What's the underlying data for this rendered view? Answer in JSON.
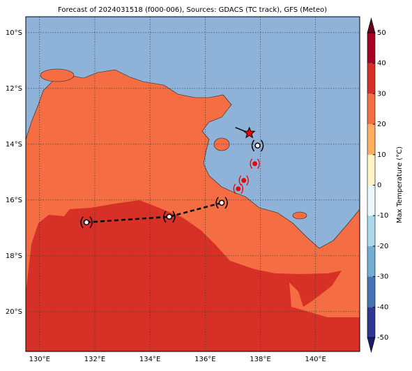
{
  "title": "Forecast of 2024031518 (f000-006), Sources: GDACS (TC track), GFS (Meteo)",
  "map": {
    "lonlim": [
      129.5,
      141.6
    ],
    "latlim": [
      -21.43,
      -9.43
    ],
    "lon_ticks": [
      {
        "value": 130,
        "label": "130°E"
      },
      {
        "value": 132,
        "label": "132°E"
      },
      {
        "value": 134,
        "label": "134°E"
      },
      {
        "value": 136,
        "label": "136°E"
      },
      {
        "value": 138,
        "label": "138°E"
      },
      {
        "value": 140,
        "label": "140°E"
      }
    ],
    "lat_ticks": [
      {
        "value": -10,
        "label": "10°S"
      },
      {
        "value": -12,
        "label": "12°S"
      },
      {
        "value": -14,
        "label": "14°S"
      },
      {
        "value": -16,
        "label": "16°S"
      },
      {
        "value": -18,
        "label": "18°S"
      },
      {
        "value": -20,
        "label": "20°S"
      }
    ]
  },
  "track": {
    "lon": [
      131.7,
      134.7,
      136.6,
      137.9
    ],
    "lat": [
      -16.8,
      -16.6,
      -16.1,
      -14.05
    ],
    "forecast_lon": [
      137.2,
      137.4,
      137.8
    ],
    "forecast_lat": [
      -15.6,
      -15.3,
      -14.7
    ],
    "current_lon": 137.6,
    "current_lat": -13.6
  },
  "colorbar": {
    "label": "Max Temperature (°C)",
    "lim": [
      -50,
      50
    ],
    "ticks": [
      50,
      40,
      30,
      20,
      10,
      0,
      -10,
      -20,
      -30,
      -40,
      -50
    ],
    "colors": [
      "#313695",
      "#4575b4",
      "#74add1",
      "#abd9e9",
      "#eef8fb",
      "#fff3c8",
      "#fdae61",
      "#f46d43",
      "#d73027",
      "#a50026"
    ],
    "under_color": "#1d1c6b",
    "over_color": "#67001f"
  }
}
